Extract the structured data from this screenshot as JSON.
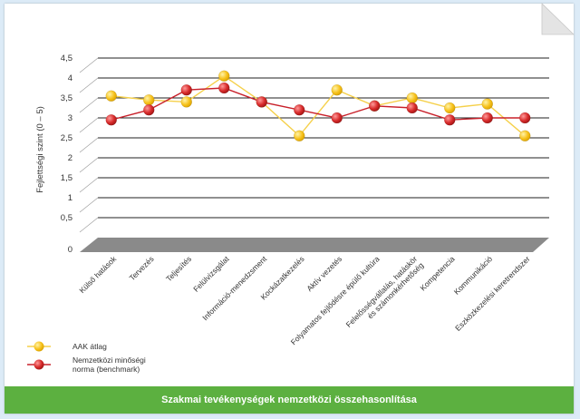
{
  "chart_data": {
    "type": "line",
    "ylabel": "Fejlettségi szint (0 – 5)",
    "ylim": [
      0,
      4.5
    ],
    "yticks": [
      "0",
      "0,5",
      "1",
      "1,5",
      "2",
      "2,5",
      "3",
      "3,5",
      "4",
      "4,5"
    ],
    "categories": [
      [
        "Külső hatások"
      ],
      [
        "Tervezés"
      ],
      [
        "Teljesítés"
      ],
      [
        "Felülvizsgálat"
      ],
      [
        "Információ-menedzsment"
      ],
      [
        "Kockázatkezelés"
      ],
      [
        "Aktív vezetés"
      ],
      [
        "Folyamatos fejlődésre épülő kultúra"
      ],
      [
        "Felelősségvállalás, hatáskör",
        "és számonkérhetőség"
      ],
      [
        "Kompetencia"
      ],
      [
        "Kommunikáció"
      ],
      [
        "Eszközkezelési keretrendszer"
      ]
    ],
    "series": [
      {
        "name": "AAK átlag",
        "line_color": "#f5d04a",
        "marker_color": "#f7c21c",
        "values": [
          3.55,
          3.45,
          3.4,
          4.05,
          3.4,
          2.55,
          3.7,
          3.3,
          3.5,
          3.25,
          3.35,
          2.55
        ]
      },
      {
        "name": "Nemzetközi minőségi norma (benchmark)",
        "legend_lines": [
          "Nemzetközi minőségi",
          "norma (benchmark)"
        ],
        "line_color": "#c8202a",
        "marker_color": "#d82b2b",
        "values": [
          2.95,
          3.2,
          3.7,
          3.75,
          3.4,
          3.2,
          3.0,
          3.3,
          3.25,
          2.95,
          3.0,
          3.0
        ]
      }
    ]
  },
  "footer_title": "Szakmai tevékenységek nemzetközi összehasonlítása"
}
